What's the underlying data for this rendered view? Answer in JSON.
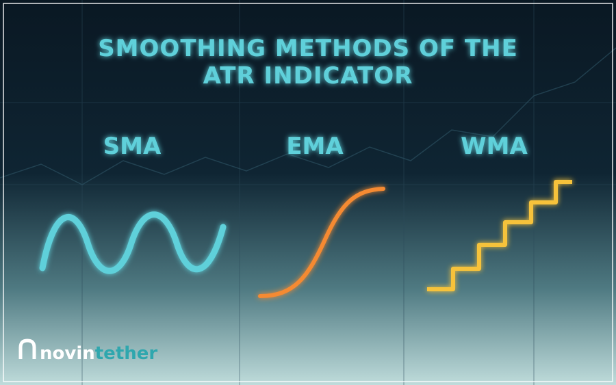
{
  "header": {
    "title_lines": [
      "SMOOTHING METHODS OF THE",
      "ATR INDICATOR"
    ]
  },
  "methods": [
    {
      "label": "SMA"
    },
    {
      "label": "EMA"
    },
    {
      "label": "WMA"
    }
  ],
  "logo": {
    "part1": "novin",
    "part2": "tether"
  }
}
